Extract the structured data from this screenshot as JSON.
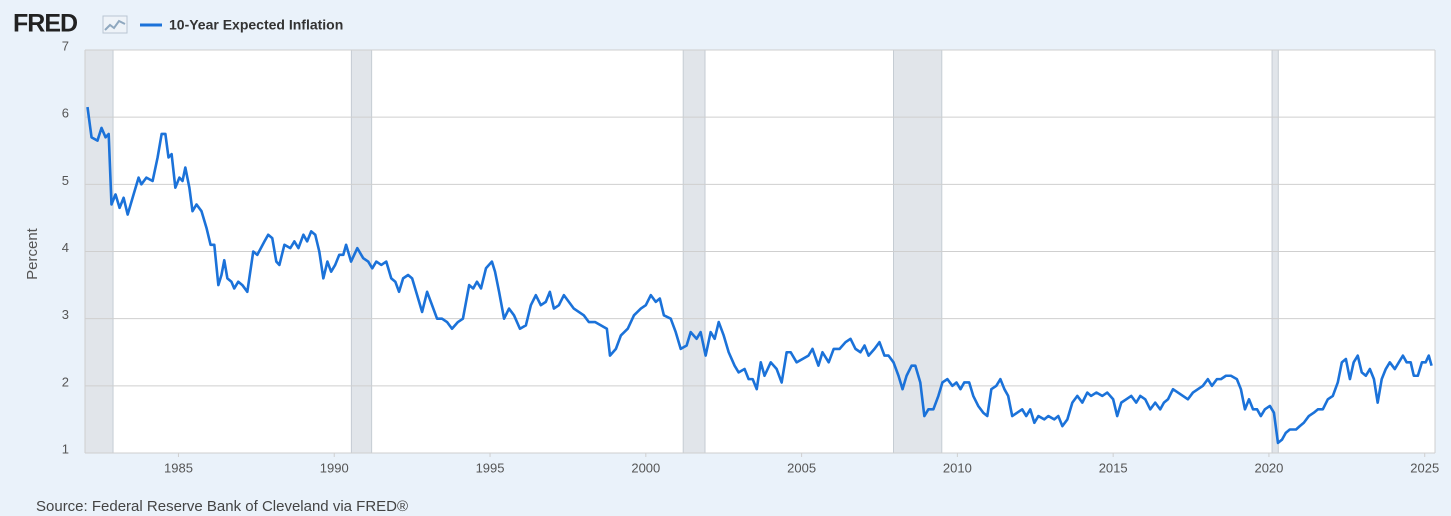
{
  "chart_data": {
    "type": "line",
    "logo": "FRED",
    "ylabel": "Percent",
    "source": "Source: Federal Reserve Bank of Cleveland via FRED®",
    "xlim": [
      1982,
      2025.33
    ],
    "ylim": [
      1,
      7
    ],
    "xticks": [
      1985,
      1990,
      1995,
      2000,
      2005,
      2010,
      2015,
      2020,
      2025
    ],
    "yticks": [
      1,
      2,
      3,
      4,
      5,
      6,
      7
    ],
    "grid": true,
    "recession_color": "#e1e5ea",
    "recessions": [
      [
        1982,
        1982.9
      ],
      [
        1990.55,
        1991.2
      ],
      [
        2001.2,
        2001.9
      ],
      [
        2007.95,
        2009.5
      ],
      [
        2020.1,
        2020.3
      ]
    ],
    "x": [
      1982.08,
      1982.21,
      1982.4,
      1982.53,
      1982.66,
      1982.76,
      1982.85,
      1982.98,
      1983.11,
      1983.24,
      1983.37,
      1983.56,
      1983.72,
      1983.81,
      1983.97,
      1984.17,
      1984.33,
      1984.46,
      1984.58,
      1984.68,
      1984.78,
      1984.9,
      1985.03,
      1985.13,
      1985.22,
      1985.35,
      1985.45,
      1985.58,
      1985.74,
      1985.9,
      1986.03,
      1986.15,
      1986.28,
      1986.38,
      1986.47,
      1986.57,
      1986.7,
      1986.79,
      1986.92,
      1987.05,
      1987.21,
      1987.4,
      1987.53,
      1987.76,
      1987.88,
      1988.01,
      1988.14,
      1988.24,
      1988.4,
      1988.59,
      1988.72,
      1988.85,
      1989.01,
      1989.13,
      1989.26,
      1989.39,
      1989.52,
      1989.65,
      1989.78,
      1989.9,
      1990.03,
      1990.16,
      1990.29,
      1990.38,
      1990.54,
      1990.74,
      1990.93,
      1991.09,
      1991.22,
      1991.35,
      1991.51,
      1991.67,
      1991.83,
      1991.96,
      1992.08,
      1992.21,
      1992.37,
      1992.5,
      1992.66,
      1992.82,
      1992.98,
      1993.14,
      1993.3,
      1993.46,
      1993.62,
      1993.78,
      1993.97,
      1994.13,
      1994.33,
      1994.46,
      1994.58,
      1994.71,
      1994.87,
      1995.06,
      1995.16,
      1995.29,
      1995.45,
      1995.61,
      1995.77,
      1995.96,
      1996.15,
      1996.31,
      1996.47,
      1996.63,
      1996.79,
      1996.92,
      1997.05,
      1997.21,
      1997.37,
      1997.53,
      1997.69,
      1997.85,
      1998.01,
      1998.17,
      1998.37,
      1998.56,
      1998.75,
      1998.85,
      1999.04,
      1999.2,
      1999.42,
      1999.62,
      1999.84,
      2000.0,
      2000.16,
      2000.32,
      2000.45,
      2000.58,
      2000.8,
      2000.96,
      2001.12,
      2001.31,
      2001.44,
      2001.63,
      2001.76,
      2001.92,
      2002.08,
      2002.21,
      2002.34,
      2002.5,
      2002.66,
      2002.85,
      2002.98,
      2003.17,
      2003.3,
      2003.43,
      2003.56,
      2003.69,
      2003.81,
      2004.01,
      2004.2,
      2004.36,
      2004.52,
      2004.65,
      2004.84,
      2005.03,
      2005.22,
      2005.35,
      2005.54,
      2005.67,
      2005.87,
      2006.03,
      2006.22,
      2006.41,
      2006.57,
      2006.73,
      2006.89,
      2007.02,
      2007.15,
      2007.34,
      2007.5,
      2007.66,
      2007.79,
      2007.95,
      2008.11,
      2008.24,
      2008.37,
      2008.53,
      2008.65,
      2008.81,
      2008.94,
      2009.07,
      2009.23,
      2009.39,
      2009.52,
      2009.68,
      2009.84,
      2009.97,
      2010.1,
      2010.22,
      2010.38,
      2010.51,
      2010.67,
      2010.83,
      2010.96,
      2011.09,
      2011.25,
      2011.38,
      2011.51,
      2011.63,
      2011.76,
      2011.92,
      2012.08,
      2012.21,
      2012.34,
      2012.47,
      2012.6,
      2012.79,
      2012.92,
      2013.11,
      2013.24,
      2013.37,
      2013.53,
      2013.69,
      2013.85,
      2014.01,
      2014.17,
      2014.29,
      2014.46,
      2014.65,
      2014.81,
      2015.0,
      2015.13,
      2015.26,
      2015.42,
      2015.58,
      2015.74,
      2015.87,
      2016.03,
      2016.19,
      2016.35,
      2016.51,
      2016.63,
      2016.76,
      2016.92,
      2017.08,
      2017.24,
      2017.4,
      2017.56,
      2017.72,
      2017.88,
      2018.04,
      2018.17,
      2018.33,
      2018.46,
      2018.62,
      2018.78,
      2018.97,
      2019.1,
      2019.23,
      2019.36,
      2019.49,
      2019.62,
      2019.74,
      2019.87,
      2020.03,
      2020.16,
      2020.29,
      2020.42,
      2020.54,
      2020.67,
      2020.87,
      2020.99,
      2021.12,
      2021.28,
      2021.44,
      2021.57,
      2021.73,
      2021.89,
      2022.05,
      2022.21,
      2022.34,
      2022.47,
      2022.6,
      2022.72,
      2022.85,
      2022.98,
      2023.11,
      2023.24,
      2023.37,
      2023.49,
      2023.62,
      2023.75,
      2023.88,
      2024.04,
      2024.17,
      2024.3,
      2024.42,
      2024.55,
      2024.65,
      2024.78,
      2024.91,
      2025.03,
      2025.13,
      2025.22
    ],
    "series": [
      {
        "name": "10-Year Expected Inflation",
        "color": "#1b72d9",
        "values": [
          6.15,
          5.7,
          5.65,
          5.84,
          5.7,
          5.75,
          4.7,
          4.85,
          4.65,
          4.8,
          4.55,
          4.85,
          5.1,
          5.0,
          5.1,
          5.05,
          5.4,
          5.75,
          5.75,
          5.4,
          5.45,
          4.95,
          5.1,
          5.05,
          5.25,
          4.95,
          4.6,
          4.7,
          4.6,
          4.35,
          4.1,
          4.1,
          3.5,
          3.65,
          3.87,
          3.6,
          3.55,
          3.45,
          3.55,
          3.5,
          3.4,
          4.0,
          3.95,
          4.15,
          4.25,
          4.2,
          3.85,
          3.8,
          4.1,
          4.05,
          4.15,
          4.05,
          4.25,
          4.15,
          4.3,
          4.25,
          4.0,
          3.6,
          3.85,
          3.7,
          3.8,
          3.95,
          3.95,
          4.1,
          3.85,
          4.05,
          3.9,
          3.85,
          3.75,
          3.85,
          3.8,
          3.85,
          3.6,
          3.55,
          3.4,
          3.6,
          3.65,
          3.6,
          3.35,
          3.1,
          3.4,
          3.2,
          3.0,
          3.0,
          2.95,
          2.85,
          2.95,
          3.0,
          3.5,
          3.45,
          3.55,
          3.45,
          3.75,
          3.85,
          3.7,
          3.4,
          3.0,
          3.15,
          3.05,
          2.85,
          2.9,
          3.2,
          3.35,
          3.2,
          3.25,
          3.4,
          3.15,
          3.2,
          3.35,
          3.25,
          3.15,
          3.1,
          3.05,
          2.95,
          2.95,
          2.9,
          2.85,
          2.45,
          2.55,
          2.75,
          2.85,
          3.05,
          3.15,
          3.2,
          3.35,
          3.25,
          3.3,
          3.05,
          3.0,
          2.8,
          2.55,
          2.6,
          2.8,
          2.7,
          2.8,
          2.45,
          2.8,
          2.7,
          2.95,
          2.75,
          2.5,
          2.3,
          2.2,
          2.25,
          2.1,
          2.1,
          1.95,
          2.35,
          2.15,
          2.35,
          2.25,
          2.05,
          2.5,
          2.5,
          2.35,
          2.4,
          2.45,
          2.55,
          2.3,
          2.5,
          2.35,
          2.55,
          2.55,
          2.65,
          2.7,
          2.55,
          2.5,
          2.6,
          2.45,
          2.55,
          2.65,
          2.45,
          2.45,
          2.35,
          2.15,
          1.95,
          2.15,
          2.3,
          2.3,
          2.05,
          1.55,
          1.65,
          1.65,
          1.85,
          2.05,
          2.1,
          2.0,
          2.05,
          1.95,
          2.05,
          2.05,
          1.85,
          1.7,
          1.6,
          1.55,
          1.95,
          2.0,
          2.1,
          1.95,
          1.85,
          1.55,
          1.6,
          1.65,
          1.55,
          1.65,
          1.45,
          1.55,
          1.5,
          1.55,
          1.5,
          1.55,
          1.4,
          1.5,
          1.75,
          1.85,
          1.75,
          1.9,
          1.85,
          1.9,
          1.85,
          1.9,
          1.8,
          1.55,
          1.75,
          1.8,
          1.85,
          1.75,
          1.85,
          1.8,
          1.65,
          1.75,
          1.65,
          1.75,
          1.8,
          1.95,
          1.9,
          1.85,
          1.8,
          1.9,
          1.95,
          2.0,
          2.1,
          2.0,
          2.1,
          2.1,
          2.15,
          2.15,
          2.1,
          1.95,
          1.65,
          1.8,
          1.65,
          1.65,
          1.55,
          1.65,
          1.7,
          1.6,
          1.15,
          1.2,
          1.3,
          1.35,
          1.35,
          1.4,
          1.45,
          1.55,
          1.6,
          1.65,
          1.65,
          1.8,
          1.85,
          2.05,
          2.35,
          2.4,
          2.1,
          2.35,
          2.45,
          2.2,
          2.15,
          2.25,
          2.1,
          1.75,
          2.1,
          2.25,
          2.35,
          2.25,
          2.35,
          2.45,
          2.35,
          2.35,
          2.15,
          2.15,
          2.35,
          2.35,
          2.45,
          2.3
        ]
      }
    ]
  }
}
